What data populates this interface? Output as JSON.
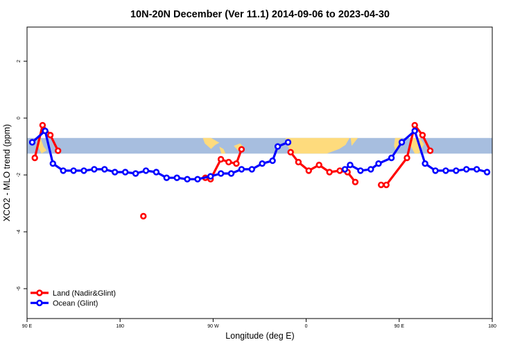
{
  "chart_data": {
    "type": "line",
    "title": "10N-20N December (Ver 11.1)   2014-09-06 to 2023-04-30",
    "xlabel": "Longitude (deg E)",
    "ylabel": "XCO2 - MLO trend (ppm)",
    "xlim": [
      90,
      540
    ],
    "ylim": [
      -7.05,
      3.2
    ],
    "x_ticks": [
      {
        "value": 90,
        "label": "90 E"
      },
      {
        "value": 180,
        "label": "180"
      },
      {
        "value": 270,
        "label": "90 W"
      },
      {
        "value": 360,
        "label": "0"
      },
      {
        "value": 450,
        "label": "90 E"
      },
      {
        "value": 540,
        "label": "180"
      }
    ],
    "y_ticks": [
      {
        "value": 2,
        "label": "2"
      },
      {
        "value": 0,
        "label": "0"
      },
      {
        "value": -2,
        "label": "-2"
      },
      {
        "value": -4,
        "label": "-4"
      },
      {
        "value": -6,
        "label": "-6"
      }
    ],
    "map_band": {
      "y_top": -0.7,
      "y_bottom": -1.25,
      "ocean_color": "#a7bedf",
      "land_color": "#fedb7d"
    },
    "legend_position": "bottom-left",
    "series": [
      {
        "name": "Land (Nadir&Glint)",
        "color": "#ff0000",
        "segments": [
          [
            [
              97.5,
              -1.4
            ],
            [
              105,
              -0.25
            ],
            [
              112.5,
              -0.6
            ],
            [
              120,
              -1.15
            ]
          ],
          [
            [
              202.5,
              -3.45
            ]
          ],
          [
            [
              262.5,
              -2.1
            ],
            [
              267.5,
              -2.15
            ],
            [
              277.5,
              -1.45
            ],
            [
              285,
              -1.55
            ],
            [
              292.5,
              -1.6
            ],
            [
              297.5,
              -1.1
            ]
          ],
          [
            [
              345,
              -1.2
            ],
            [
              352.5,
              -1.55
            ],
            [
              362.5,
              -1.85
            ],
            [
              372.5,
              -1.65
            ],
            [
              382.5,
              -1.9
            ],
            [
              392.5,
              -1.85
            ],
            [
              400,
              -1.9
            ],
            [
              407.5,
              -2.25
            ]
          ],
          [
            [
              432.5,
              -2.35
            ],
            [
              437.5,
              -2.35
            ],
            [
              457.5,
              -1.4
            ],
            [
              465,
              -0.25
            ],
            [
              472.5,
              -0.6
            ],
            [
              480,
              -1.15
            ]
          ]
        ]
      },
      {
        "name": "Ocean (Glint)",
        "color": "#0000ff",
        "segments": [
          [
            [
              95,
              -0.85
            ],
            [
              107.5,
              -0.45
            ],
            [
              115,
              -1.6
            ],
            [
              125,
              -1.85
            ],
            [
              135,
              -1.85
            ],
            [
              145,
              -1.85
            ],
            [
              155,
              -1.8
            ],
            [
              165,
              -1.8
            ],
            [
              175,
              -1.9
            ],
            [
              185,
              -1.9
            ],
            [
              195,
              -1.95
            ],
            [
              205,
              -1.85
            ],
            [
              215,
              -1.9
            ],
            [
              225,
              -2.1
            ],
            [
              235,
              -2.1
            ],
            [
              245,
              -2.15
            ],
            [
              255,
              -2.15
            ],
            [
              267.5,
              -2.05
            ],
            [
              277.5,
              -1.95
            ],
            [
              287.5,
              -1.95
            ],
            [
              297.5,
              -1.8
            ],
            [
              307.5,
              -1.8
            ],
            [
              317.5,
              -1.6
            ],
            [
              327.5,
              -1.5
            ],
            [
              332.5,
              -1.0
            ],
            [
              342.5,
              -0.85
            ]
          ],
          [
            [
              397.5,
              -1.8
            ],
            [
              402.5,
              -1.65
            ],
            [
              412.5,
              -1.85
            ],
            [
              422.5,
              -1.8
            ],
            [
              430,
              -1.6
            ],
            [
              442.5,
              -1.4
            ],
            [
              452.5,
              -0.85
            ],
            [
              465,
              -0.45
            ],
            [
              475,
              -1.6
            ],
            [
              485,
              -1.85
            ],
            [
              495,
              -1.85
            ],
            [
              505,
              -1.85
            ],
            [
              515,
              -1.8
            ],
            [
              525,
              -1.8
            ],
            [
              535,
              -1.9
            ]
          ]
        ]
      }
    ]
  }
}
